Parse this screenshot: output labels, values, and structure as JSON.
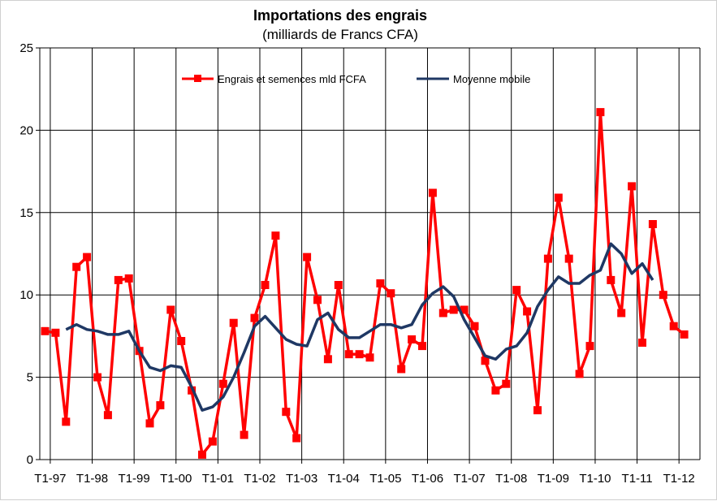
{
  "chart_data": {
    "type": "line",
    "title": "Importations des engrais",
    "subtitle": "(milliards de Francs CFA)",
    "xlabel": "",
    "ylabel": "",
    "ylim": [
      0,
      25
    ],
    "yticks": [
      0,
      5,
      10,
      15,
      20,
      25
    ],
    "grid": true,
    "legend_position": "top-right",
    "x_tick_labels": [
      "T1-97",
      "T1-98",
      "T1-99",
      "T1-00",
      "T1-01",
      "T1-02",
      "T1-03",
      "T1-04",
      "T1-05",
      "T1-06",
      "T1-07",
      "T1-08",
      "T1-09",
      "T1-10",
      "T1-11",
      "T1-12"
    ],
    "periods_per_label": 4,
    "series": [
      {
        "name": "Engrais et semences mld FCFA",
        "color": "#ff0000",
        "marker": "square",
        "values": [
          7.8,
          7.7,
          2.3,
          11.7,
          12.3,
          5.0,
          2.7,
          10.9,
          11.0,
          6.6,
          2.2,
          3.3,
          9.1,
          7.2,
          4.2,
          0.3,
          1.1,
          4.6,
          8.3,
          1.5,
          8.6,
          10.6,
          13.6,
          2.9,
          1.3,
          12.3,
          9.7,
          6.1,
          10.6,
          6.4,
          6.4,
          6.2,
          10.7,
          10.1,
          5.5,
          7.3,
          6.9,
          16.2,
          8.9,
          9.1,
          9.1,
          8.1,
          6.0,
          4.2,
          4.6,
          10.3,
          9.0,
          3.0,
          12.2,
          15.9,
          12.2,
          5.2,
          6.9,
          21.1,
          10.9,
          8.9,
          16.6,
          7.1,
          14.3,
          10.0,
          8.1,
          7.6
        ]
      },
      {
        "name": "Moyenne mobile",
        "color": "#1f3864",
        "marker": "none",
        "start_index": 2,
        "values": [
          7.9,
          8.2,
          7.9,
          7.8,
          7.6,
          7.6,
          7.8,
          6.6,
          5.6,
          5.4,
          5.7,
          5.6,
          4.4,
          3.0,
          3.2,
          3.8,
          5.0,
          6.5,
          8.1,
          8.7,
          8.0,
          7.3,
          7.0,
          6.9,
          8.5,
          8.9,
          7.9,
          7.4,
          7.4,
          7.8,
          8.2,
          8.2,
          8.0,
          8.2,
          9.4,
          10.1,
          10.5,
          9.9,
          8.5,
          7.4,
          6.3,
          6.1,
          6.7,
          6.9,
          7.7,
          9.3,
          10.3,
          11.1,
          10.7,
          10.7,
          11.2,
          11.5,
          13.1,
          12.5,
          11.3,
          11.9,
          10.9
        ]
      }
    ]
  }
}
